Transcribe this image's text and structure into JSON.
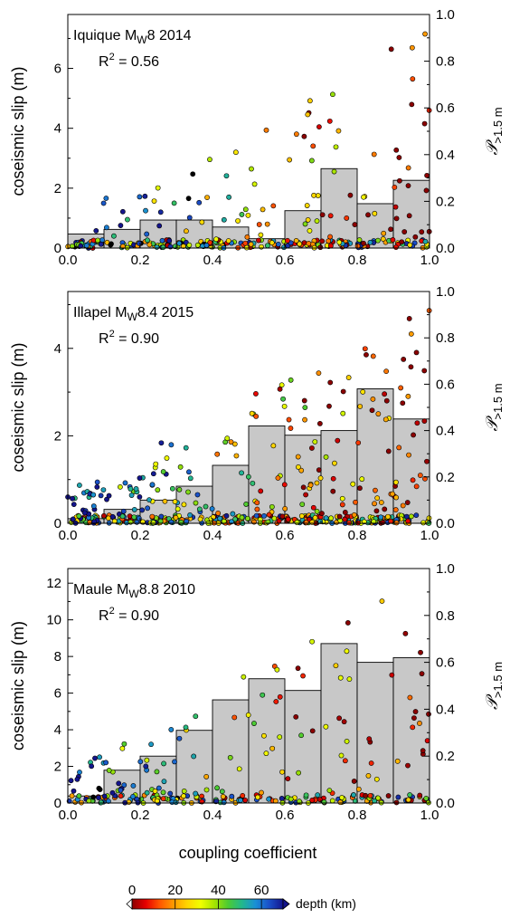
{
  "chart_data": [
    {
      "type": "bar",
      "title": "Iquique M_W 8 2014",
      "title_parts": {
        "pre": "Iquique M",
        "sub": "W",
        "post": "8 2014"
      },
      "r2": "R² = 0.56",
      "r2_parts": {
        "base": "R",
        "sup": "2",
        "rest": " = 0.56"
      },
      "ylabel": "coseismic slip (m)",
      "ylabel_right": "𝒫>1.5 m",
      "ylim": [
        0,
        7.8
      ],
      "ylim_right": [
        0,
        1.0
      ],
      "yticks": [
        0,
        2,
        4,
        6
      ],
      "yticks_right": [
        "0.0",
        "0.2",
        "0.4",
        "0.6",
        "0.8",
        "1.0"
      ],
      "xticks": [
        "0.0",
        "0.2",
        "0.4",
        "0.6",
        "0.8",
        "1.0"
      ],
      "xlim": [
        0,
        1
      ],
      "bins": [
        0.0,
        0.1,
        0.2,
        0.3,
        0.4,
        0.5,
        0.6,
        0.7,
        0.8,
        0.9,
        1.0
      ],
      "probability": [
        0.06,
        0.08,
        0.12,
        0.12,
        0.09,
        0.04,
        0.16,
        0.34,
        0.19,
        0.29
      ],
      "scatter": {
        "seed": 11,
        "n_zero": 190,
        "n_pos": 120,
        "max_slip": 7.3,
        "young_frac": 0.1,
        "black_frac": 0.05,
        "spread": 0.55
      }
    },
    {
      "type": "bar",
      "title": "Illapel M_W 8.4 2015",
      "title_parts": {
        "pre": "Illapel M",
        "sub": "W",
        "post": "8.4 2015"
      },
      "r2": "R² = 0.90",
      "r2_parts": {
        "base": "R",
        "sup": "2",
        "rest": " = 0.90"
      },
      "ylabel": "coseismic slip (m)",
      "ylabel_right": "𝒫>1.5 m",
      "ylim": [
        0,
        5.3
      ],
      "ylim_right": [
        0,
        1.0
      ],
      "yticks": [
        0,
        2,
        4
      ],
      "yticks_right": [
        "0.0",
        "0.2",
        "0.4",
        "0.6",
        "0.8",
        "1.0"
      ],
      "xticks": [
        "0.0",
        "0.2",
        "0.4",
        "0.6",
        "0.8",
        "1.0"
      ],
      "xlim": [
        0,
        1
      ],
      "bins": [
        0.0,
        0.1,
        0.2,
        0.3,
        0.4,
        0.5,
        0.6,
        0.7,
        0.8,
        0.9,
        1.0
      ],
      "probability": [
        0.02,
        0.06,
        0.1,
        0.16,
        0.25,
        0.42,
        0.38,
        0.4,
        0.58,
        0.45
      ],
      "scatter": {
        "seed": 23,
        "n_zero": 240,
        "n_pos": 260,
        "max_slip": 5.1,
        "young_frac": 0.2,
        "black_frac": 0.0,
        "spread": 0.45
      }
    },
    {
      "type": "bar",
      "title": "Maule M_W 8.8 2010",
      "title_parts": {
        "pre": "Maule M",
        "sub": "W",
        "post": "8.8 2010"
      },
      "r2": "R² = 0.90",
      "r2_parts": {
        "base": "R",
        "sup": "2",
        "rest": " = 0.90"
      },
      "ylabel": "coseismic slip (m)",
      "ylabel_right": "𝒫>1.5 m",
      "ylim": [
        0,
        12.8
      ],
      "ylim_right": [
        0,
        1.0
      ],
      "yticks": [
        0,
        2,
        4,
        6,
        8,
        10,
        12
      ],
      "yticks_right": [
        "0.0",
        "0.2",
        "0.4",
        "0.6",
        "0.8",
        "1.0"
      ],
      "xticks": [
        "0.0",
        "0.2",
        "0.4",
        "0.6",
        "0.8",
        "1.0"
      ],
      "xlim": [
        0,
        1
      ],
      "bins": [
        0.0,
        0.1,
        0.2,
        0.3,
        0.4,
        0.5,
        0.6,
        0.7,
        0.8,
        0.9,
        1.0
      ],
      "probability": [
        0.03,
        0.14,
        0.2,
        0.31,
        0.44,
        0.53,
        0.48,
        0.68,
        0.6,
        0.62
      ],
      "scatter": {
        "seed": 37,
        "n_zero": 130,
        "n_pos": 150,
        "max_slip": 12.6,
        "young_frac": 0.3,
        "black_frac": 0.04,
        "spread": 0.6
      }
    }
  ],
  "xlabel": "coupling coefficient",
  "colorbar": {
    "label": "depth (km)",
    "ticks": [
      "0",
      "20",
      "40",
      "60"
    ],
    "range": [
      0,
      70
    ],
    "stops": [
      "#8b0000",
      "#e60000",
      "#ff5500",
      "#ff9900",
      "#ffd400",
      "#f0ff00",
      "#a6e400",
      "#4ccb33",
      "#22b88c",
      "#1a8fd6",
      "#1a4fc8",
      "#14148c"
    ]
  }
}
